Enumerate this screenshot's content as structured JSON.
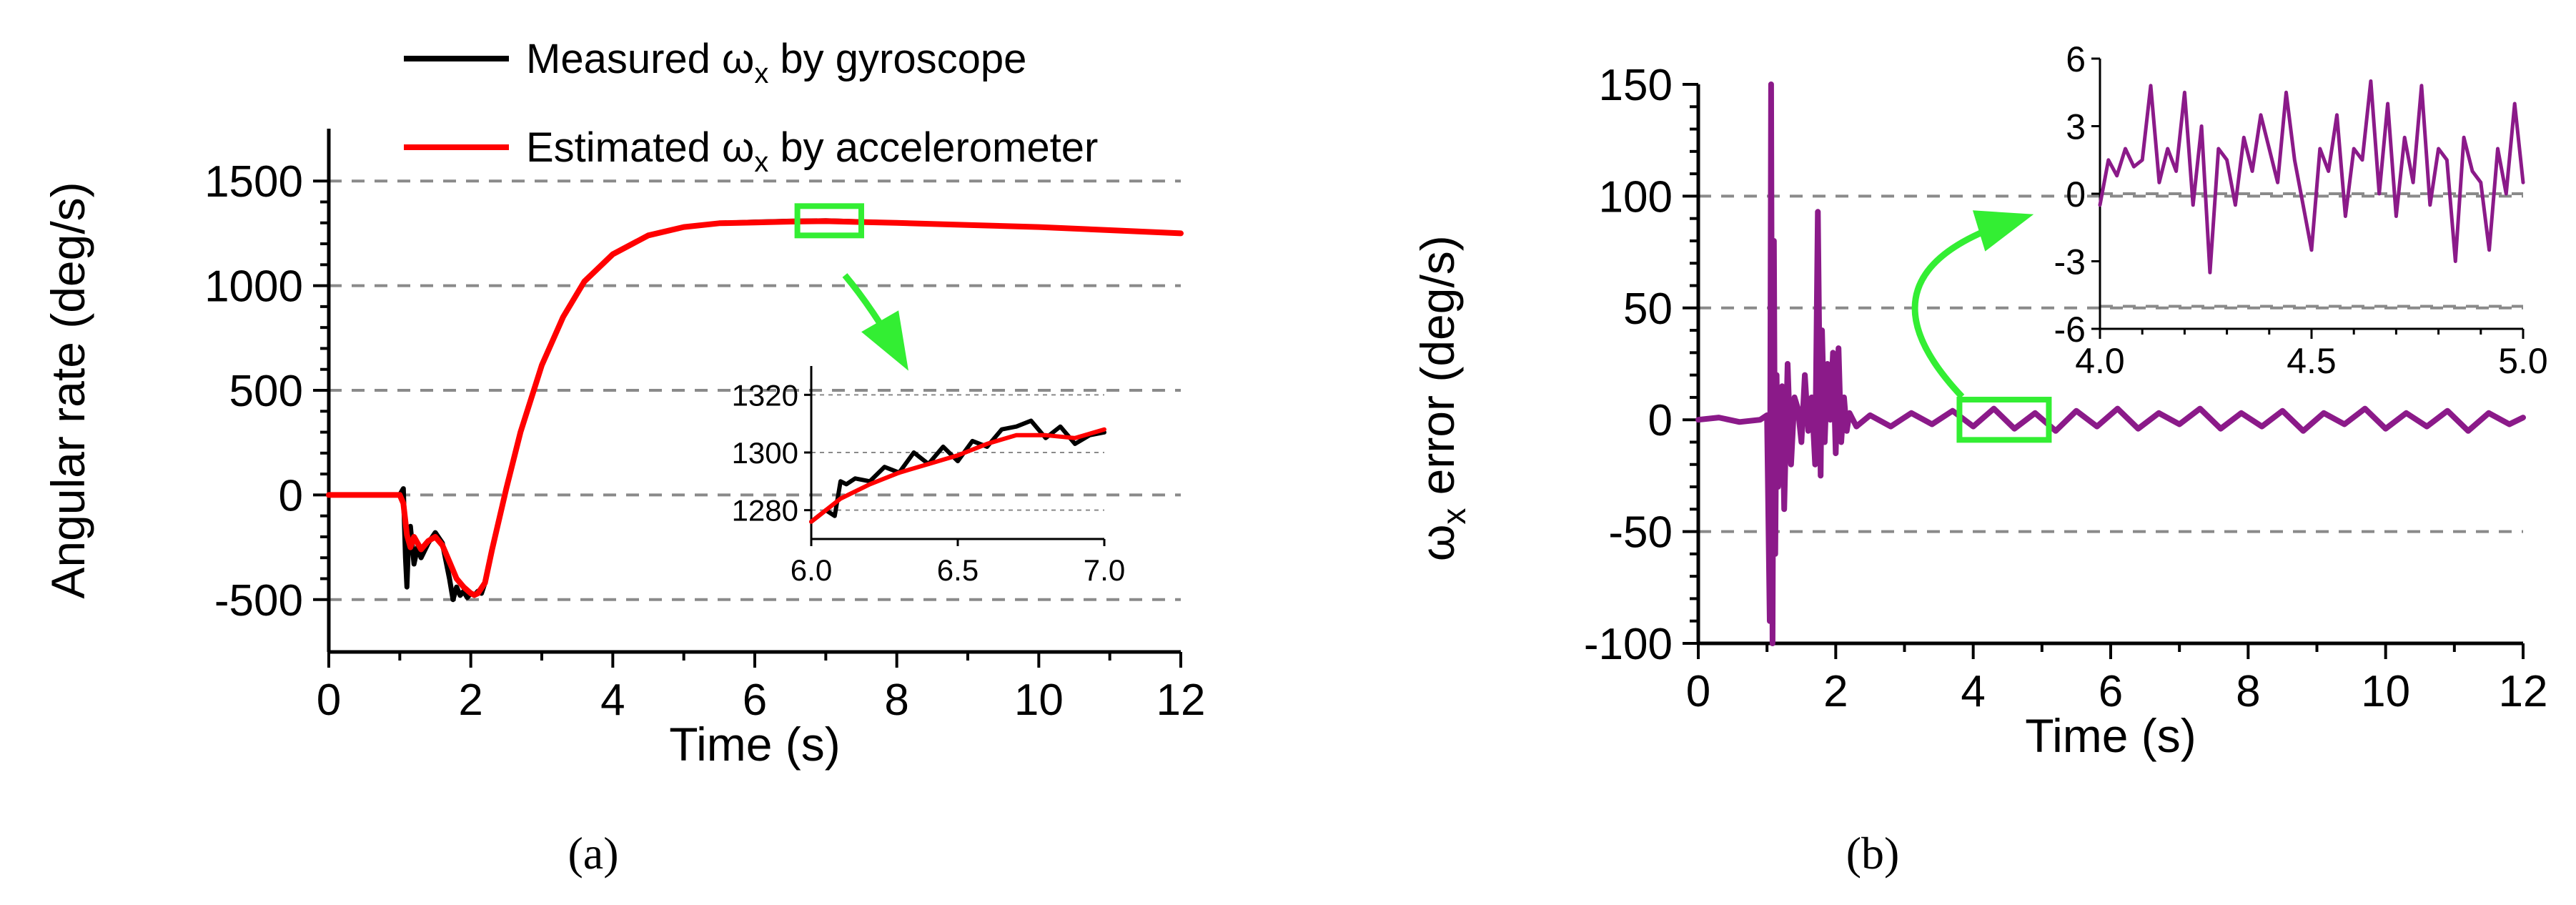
{
  "colors": {
    "measured": "#000000",
    "estimated": "#ff0000",
    "error": "#8b1a89",
    "highlight": "#33ee33",
    "grid": "#8a8a8a"
  },
  "chart_data": [
    {
      "id": "a",
      "type": "line",
      "panel_label": "(a)",
      "xlabel": "Time (s)",
      "ylabel": "Angular rate (deg/s)",
      "xlim": [
        0,
        12
      ],
      "ylim": [
        -750,
        1750
      ],
      "xticks": [
        0,
        2,
        4,
        6,
        8,
        10,
        12
      ],
      "yticks": [
        -500,
        0,
        500,
        1000,
        1500
      ],
      "ygrid": [
        -500,
        0,
        500,
        1000,
        1500
      ],
      "legend": {
        "placement": "top-center",
        "entries": [
          {
            "prefix": "Measured ",
            "symbol": "ω",
            "subscript": "x",
            "suffix": " by gyroscope",
            "color": "#000000"
          },
          {
            "prefix": "Estimated ",
            "symbol": "ω",
            "subscript": "x",
            "suffix": " by accelerometer",
            "color": "#ff0000"
          }
        ]
      },
      "series": [
        {
          "name": "Measured ωx by gyroscope",
          "x": [
            0,
            0.5,
            1.0,
            1.05,
            1.08,
            1.1,
            1.12,
            1.15,
            1.2,
            1.25,
            1.3,
            1.4,
            1.5,
            1.6,
            1.7,
            1.75,
            1.8,
            1.85,
            1.9,
            1.95,
            2.0,
            2.05,
            2.1,
            2.15,
            2.2,
            2.3,
            2.5,
            2.7,
            3.0,
            3.3,
            3.6,
            4.0,
            4.5,
            5.0,
            5.5,
            6.0,
            6.5,
            7.0,
            7.5,
            8.0,
            9.0,
            10.0,
            11.0,
            12.0
          ],
          "y": [
            0,
            0,
            0,
            30,
            -300,
            -440,
            -250,
            -150,
            -330,
            -250,
            -300,
            -230,
            -180,
            -230,
            -400,
            -500,
            -440,
            -480,
            -460,
            -490,
            -470,
            -480,
            -460,
            -470,
            -420,
            -260,
            30,
            300,
            620,
            850,
            1020,
            1150,
            1240,
            1280,
            1298,
            1304,
            1308,
            1310,
            1305,
            1300,
            1290,
            1280,
            1265,
            1250
          ]
        },
        {
          "name": "Estimated ωx by accelerometer",
          "x": [
            0,
            0.5,
            1.0,
            1.05,
            1.1,
            1.15,
            1.2,
            1.3,
            1.4,
            1.5,
            1.6,
            1.7,
            1.8,
            1.9,
            2.0,
            2.05,
            2.1,
            2.2,
            2.3,
            2.5,
            2.7,
            3.0,
            3.3,
            3.6,
            4.0,
            4.5,
            5.0,
            5.5,
            6.0,
            6.5,
            7.0,
            7.5,
            8.0,
            9.0,
            10.0,
            11.0,
            12.0
          ],
          "y": [
            0,
            0,
            0,
            -40,
            -190,
            -250,
            -200,
            -260,
            -220,
            -200,
            -240,
            -320,
            -400,
            -440,
            -470,
            -478,
            -470,
            -420,
            -260,
            30,
            300,
            620,
            850,
            1020,
            1150,
            1240,
            1280,
            1298,
            1302,
            1306,
            1308,
            1304,
            1300,
            1290,
            1280,
            1265,
            1250
          ]
        }
      ],
      "zoom_box": {
        "x": [
          6.6,
          7.5
        ],
        "y": [
          1240,
          1380
        ]
      },
      "inset": {
        "xlim": [
          6.0,
          7.0
        ],
        "ylim": [
          1270,
          1330
        ],
        "xticks": [
          6.0,
          6.5,
          7.0
        ],
        "xtick_labels": [
          "6.0",
          "6.5",
          "7.0"
        ],
        "yticks": [
          1280,
          1300,
          1320
        ],
        "series": [
          {
            "name": "Measured ωx by gyroscope",
            "x": [
              6.0,
              6.05,
              6.08,
              6.1,
              6.12,
              6.15,
              6.2,
              6.25,
              6.3,
              6.35,
              6.4,
              6.45,
              6.5,
              6.55,
              6.6,
              6.65,
              6.7,
              6.75,
              6.8,
              6.85,
              6.9,
              6.95,
              7.0
            ],
            "y": [
              1276,
              1280,
              1278,
              1290,
              1289,
              1291,
              1290,
              1295,
              1293,
              1300,
              1296,
              1302,
              1297,
              1304,
              1302,
              1308,
              1309,
              1311,
              1305,
              1309,
              1303,
              1306,
              1307
            ]
          },
          {
            "name": "Estimated ωx by accelerometer",
            "x": [
              6.0,
              6.1,
              6.2,
              6.3,
              6.4,
              6.5,
              6.6,
              6.7,
              6.8,
              6.9,
              7.0
            ],
            "y": [
              1276,
              1284,
              1289,
              1293,
              1296,
              1299,
              1303,
              1306,
              1306,
              1305,
              1308
            ]
          }
        ]
      }
    },
    {
      "id": "b",
      "type": "line",
      "panel_label": "(b)",
      "xlabel": "Time (s)",
      "ylabel_symbol": "ω",
      "ylabel_sub": "x",
      "ylabel_rest": " error (deg/s)",
      "xlim": [
        0,
        12
      ],
      "ylim": [
        -100,
        150
      ],
      "xticks": [
        0,
        2,
        4,
        6,
        8,
        10,
        12
      ],
      "yticks": [
        -100,
        -50,
        0,
        50,
        100,
        150
      ],
      "ygrid": [
        -50,
        50,
        100
      ],
      "series": [
        {
          "name": "error",
          "x": [
            0,
            0.3,
            0.6,
            0.9,
            1.0,
            1.04,
            1.06,
            1.08,
            1.1,
            1.12,
            1.14,
            1.16,
            1.18,
            1.2,
            1.22,
            1.25,
            1.3,
            1.35,
            1.4,
            1.45,
            1.5,
            1.55,
            1.6,
            1.65,
            1.7,
            1.74,
            1.78,
            1.8,
            1.84,
            1.88,
            1.92,
            1.96,
            2.0,
            2.04,
            2.08,
            2.12,
            2.16,
            2.2,
            2.3,
            2.5,
            2.8,
            3.1,
            3.4,
            3.7,
            4.0,
            4.3,
            4.6,
            4.9,
            5.2,
            5.5,
            5.8,
            6.1,
            6.4,
            6.7,
            7.0,
            7.3,
            7.6,
            7.9,
            8.2,
            8.5,
            8.8,
            9.1,
            9.4,
            9.7,
            10.0,
            10.3,
            10.6,
            10.9,
            11.2,
            11.5,
            11.8,
            12.0
          ],
          "y": [
            0,
            1,
            -1,
            0,
            2,
            -90,
            150,
            -100,
            80,
            -60,
            20,
            -30,
            10,
            -5,
            15,
            -40,
            25,
            -20,
            10,
            5,
            -10,
            20,
            -5,
            10,
            -20,
            93,
            -25,
            40,
            -10,
            25,
            0,
            30,
            -15,
            32,
            -10,
            10,
            -5,
            3,
            -3,
            2,
            -3,
            3,
            -2,
            4,
            -3,
            5,
            -4,
            3,
            -5,
            4,
            -3,
            5,
            -4,
            3,
            -2,
            5,
            -4,
            3,
            -3,
            4,
            -5,
            3,
            -2,
            5,
            -4,
            3,
            -3,
            4,
            -5,
            3,
            -2,
            1
          ]
        }
      ],
      "zoom_box": {
        "x": [
          3.8,
          5.1
        ],
        "y": [
          -9,
          9
        ]
      },
      "inset": {
        "xlim": [
          4.0,
          5.0
        ],
        "ylim": [
          -6,
          6
        ],
        "xticks": [
          4.0,
          4.5,
          5.0
        ],
        "xtick_labels": [
          "4.0",
          "4.5",
          "5.0"
        ],
        "yticks": [
          -6,
          -3,
          0,
          3,
          6
        ],
        "series": [
          {
            "name": "error",
            "x": [
              4.0,
              4.02,
              4.04,
              4.06,
              4.08,
              4.1,
              4.12,
              4.14,
              4.16,
              4.18,
              4.2,
              4.22,
              4.24,
              4.26,
              4.28,
              4.3,
              4.32,
              4.34,
              4.36,
              4.38,
              4.4,
              4.42,
              4.44,
              4.46,
              4.48,
              4.5,
              4.52,
              4.54,
              4.56,
              4.58,
              4.6,
              4.62,
              4.64,
              4.66,
              4.68,
              4.7,
              4.72,
              4.74,
              4.76,
              4.78,
              4.8,
              4.82,
              4.84,
              4.86,
              4.88,
              4.9,
              4.92,
              4.94,
              4.96,
              4.98,
              5.0
            ],
            "y": [
              -0.5,
              1.5,
              0.8,
              2.0,
              1.2,
              1.5,
              4.8,
              0.5,
              2.0,
              1.0,
              4.5,
              -0.5,
              3.0,
              -3.5,
              2.0,
              1.5,
              -0.5,
              2.5,
              1.0,
              3.5,
              2.0,
              0.5,
              4.5,
              1.5,
              -0.5,
              -2.5,
              2.0,
              1.0,
              3.5,
              -1.0,
              2.0,
              1.5,
              5.0,
              0.0,
              4.0,
              -1.0,
              2.5,
              0.5,
              4.8,
              -0.5,
              2.0,
              1.5,
              -3.0,
              2.5,
              1.0,
              0.5,
              -2.5,
              2.0,
              0.0,
              4.0,
              0.5
            ]
          }
        ]
      }
    }
  ]
}
